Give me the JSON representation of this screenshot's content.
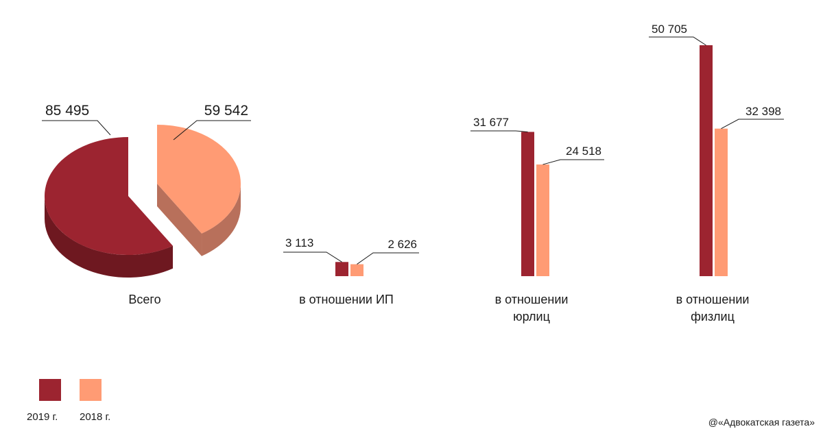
{
  "chart_data": [
    {
      "type": "pie",
      "category": "Всего",
      "slices": [
        {
          "series": "2019 г.",
          "value": 85495,
          "label": "85 495"
        },
        {
          "series": "2018 г.",
          "value": 59542,
          "label": "59 542"
        }
      ]
    },
    {
      "type": "bar",
      "categories": [
        "в отношении ИП",
        "в отношении юрлиц",
        "в отношении физлиц"
      ],
      "category_lines": [
        [
          "в отношении ИП"
        ],
        [
          "в отношении",
          "юрлиц"
        ],
        [
          "в отношении",
          "физлиц"
        ]
      ],
      "series": [
        {
          "name": "2019 г.",
          "values": [
            3113,
            31677,
            50705
          ],
          "labels": [
            "3 113",
            "31 677",
            "50 705"
          ]
        },
        {
          "name": "2018 г.",
          "values": [
            2626,
            24518,
            32398
          ],
          "labels": [
            "2 626",
            "24 518",
            "32 398"
          ]
        }
      ],
      "ylim": [
        0,
        50705
      ]
    }
  ],
  "legend": [
    {
      "label": "2019 г.",
      "color": "#9c2430"
    },
    {
      "label": "2018 г.",
      "color": "#ff9b74"
    }
  ],
  "colors": {
    "y2019": "#9c2430",
    "y2019_side": "#6e1820",
    "y2018": "#ff9b74",
    "y2018_side": "#b8705b"
  },
  "source": "@«Адвокатская газета»"
}
